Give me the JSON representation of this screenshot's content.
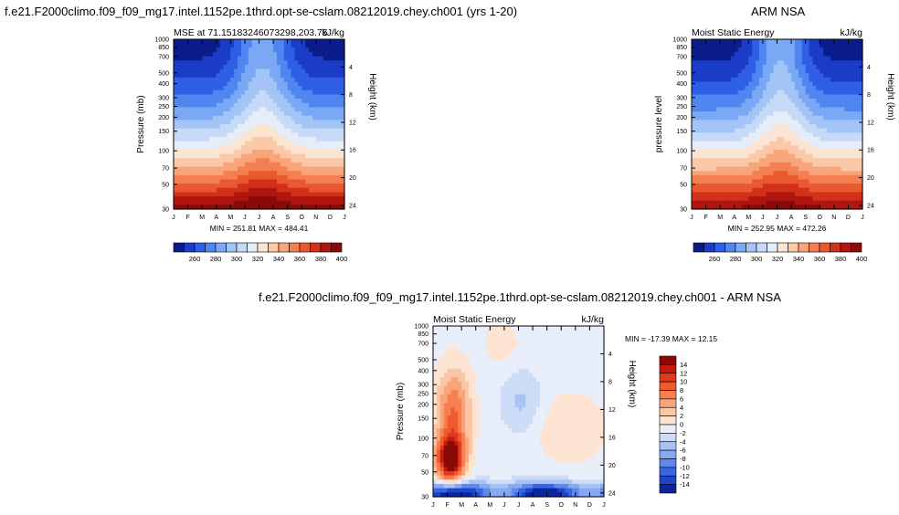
{
  "page": {
    "title_left": "f.e21.F2000climo.f09_f09_mg17.intel.1152pe.1thrd.opt-se-cslam.08212019.chey.ch001 (yrs 1-20)",
    "title_right": "ARM NSA",
    "title_bottom": "f.e21.F2000climo.f09_f09_mg17.intel.1152pe.1thrd.opt-se-cslam.08212019.chey.ch001 - ARM NSA"
  },
  "axes_common": {
    "months": [
      "J",
      "F",
      "M",
      "A",
      "M",
      "J",
      "J",
      "A",
      "S",
      "O",
      "N",
      "D",
      "J"
    ],
    "pressure_ticks": [
      30,
      50,
      70,
      100,
      150,
      200,
      250,
      300,
      400,
      500,
      700,
      850,
      1000
    ],
    "height_ticks": [
      24,
      20,
      16,
      12,
      8,
      4
    ],
    "height_label": "Height (km)"
  },
  "chart_data": [
    {
      "type": "heatmap",
      "name": "model",
      "left_title": "MSE at 71.15183246073298,203.75",
      "right_title": "kJ/kg",
      "ylabel": "Pressure (mb)",
      "stats": "MIN = 251.81   MAX = 484.41",
      "colorbar_labels": [
        "260",
        "280",
        "300",
        "320",
        "340",
        "360",
        "380",
        "400"
      ],
      "colorbar_colors": [
        "#0a1c8a",
        "#1a3cc8",
        "#2e5fe6",
        "#4f86f0",
        "#7aa8f5",
        "#a3c4f7",
        "#c6daf8",
        "#e5edf8",
        "#fbe4d2",
        "#fbc9a8",
        "#f9a57b",
        "#f47f52",
        "#e9582f",
        "#d2301a",
        "#b01510",
        "#8a0a08"
      ],
      "contour_levels": [
        260,
        270,
        280,
        290,
        300,
        310,
        320,
        330,
        340,
        350,
        360,
        370,
        380,
        390,
        400
      ],
      "y_range_mb": [
        1000,
        30
      ]
    },
    {
      "type": "heatmap",
      "name": "obs",
      "left_title": "Moist Static Energy",
      "right_title": "kJ/kg",
      "ylabel": "pressure level",
      "stats": "MIN = 252.95   MAX = 472.26",
      "colorbar_labels": [
        "260",
        "280",
        "300",
        "320",
        "340",
        "360",
        "380",
        "400"
      ],
      "colorbar_colors": [
        "#0a1c8a",
        "#1a3cc8",
        "#2e5fe6",
        "#4f86f0",
        "#7aa8f5",
        "#a3c4f7",
        "#c6daf8",
        "#e5edf8",
        "#fbe4d2",
        "#fbc9a8",
        "#f9a57b",
        "#f47f52",
        "#e9582f",
        "#d2301a",
        "#b01510",
        "#8a0a08"
      ],
      "contour_levels": [
        260,
        270,
        280,
        290,
        300,
        310,
        320,
        330,
        340,
        350,
        360,
        370,
        380,
        390,
        400
      ],
      "y_range_mb": [
        1000,
        30
      ]
    },
    {
      "type": "heatmap",
      "name": "difference",
      "left_title": "Moist Static Energy",
      "right_title": "kJ/kg",
      "ylabel": "Pressure (mb)",
      "stats": "MIN = -17.39   MAX =  12.15",
      "colorbar_labels": [
        "14",
        "12",
        "10",
        "8",
        "6",
        "4",
        "2",
        "0",
        "-2",
        "-4",
        "-6",
        "-8",
        "-10",
        "-12",
        "-14"
      ],
      "colorbar_colors": [
        "#8a0a08",
        "#c41a0e",
        "#e0391c",
        "#f05a2c",
        "#f77f52",
        "#f9a57b",
        "#fbc6a4",
        "#fde4d2",
        "#e8eefa",
        "#cddcf7",
        "#a9c3f5",
        "#86a9f1",
        "#5f88ea",
        "#3a65e0",
        "#1e44cc",
        "#0c249e"
      ],
      "contour_levels": [
        -14,
        -12,
        -10,
        -8,
        -6,
        -4,
        -2,
        0,
        2,
        4,
        6,
        8,
        10,
        12,
        14
      ],
      "y_range_mb": [
        1000,
        30
      ]
    }
  ]
}
